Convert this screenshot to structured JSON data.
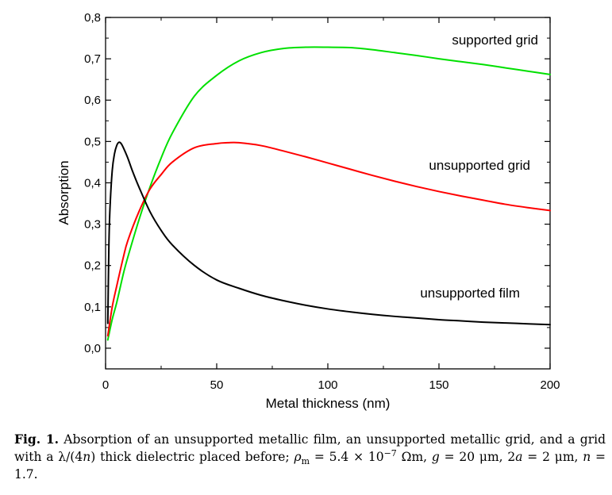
{
  "chart_data": {
    "type": "line",
    "xlabel": "Metal thickness (nm)",
    "ylabel": "Absorption",
    "xlim": [
      0,
      200
    ],
    "ylim": [
      -0.05,
      0.8
    ],
    "xticks": [
      0,
      50,
      100,
      150,
      200
    ],
    "xtick_labels": [
      "0",
      "50",
      "100",
      "150",
      "200"
    ],
    "yticks": [
      0.0,
      0.1,
      0.2,
      0.3,
      0.4,
      0.5,
      0.6,
      0.7,
      0.8
    ],
    "ytick_labels": [
      "0,0",
      "0,1",
      "0,2",
      "0,3",
      "0,4",
      "0,5",
      "0,6",
      "0,7",
      "0,8"
    ],
    "grid": false,
    "series": [
      {
        "name": "supported grid",
        "color": "#00e000",
        "x": [
          1,
          3,
          5,
          8,
          10,
          15,
          20,
          25,
          30,
          40,
          50,
          60,
          70,
          80,
          90,
          100,
          110,
          120,
          130,
          140,
          150,
          160,
          170,
          180,
          190,
          200
        ],
        "y": [
          0.02,
          0.07,
          0.11,
          0.18,
          0.22,
          0.31,
          0.39,
          0.46,
          0.52,
          0.61,
          0.66,
          0.695,
          0.715,
          0.725,
          0.728,
          0.728,
          0.727,
          0.722,
          0.715,
          0.708,
          0.7,
          0.693,
          0.686,
          0.678,
          0.67,
          0.662
        ]
      },
      {
        "name": "unsupported grid",
        "color": "#ff0000",
        "x": [
          1,
          3,
          5,
          8,
          10,
          15,
          20,
          25,
          30,
          40,
          50,
          55,
          60,
          70,
          80,
          90,
          100,
          110,
          120,
          130,
          140,
          150,
          160,
          170,
          180,
          190,
          200
        ],
        "y": [
          0.03,
          0.1,
          0.15,
          0.22,
          0.26,
          0.33,
          0.385,
          0.42,
          0.45,
          0.485,
          0.495,
          0.497,
          0.497,
          0.49,
          0.477,
          0.463,
          0.448,
          0.433,
          0.418,
          0.404,
          0.391,
          0.379,
          0.368,
          0.358,
          0.348,
          0.34,
          0.333
        ]
      },
      {
        "name": "unsupported film",
        "color": "#000000",
        "x": [
          1,
          1.5,
          2,
          3,
          4,
          5,
          6,
          7,
          8,
          10,
          12,
          15,
          20,
          25,
          30,
          40,
          50,
          60,
          70,
          80,
          90,
          100,
          110,
          120,
          130,
          140,
          150,
          160,
          170,
          180,
          190,
          200
        ],
        "y": [
          0.06,
          0.25,
          0.34,
          0.43,
          0.47,
          0.49,
          0.498,
          0.495,
          0.485,
          0.46,
          0.43,
          0.39,
          0.33,
          0.285,
          0.25,
          0.2,
          0.165,
          0.145,
          0.128,
          0.115,
          0.104,
          0.095,
          0.088,
          0.082,
          0.077,
          0.073,
          0.069,
          0.066,
          0.063,
          0.061,
          0.059,
          0.057
        ]
      }
    ],
    "annotations": [
      "supported grid",
      "unsupported grid",
      "unsupported film"
    ]
  },
  "caption": {
    "fig_label": "Fig. 1.",
    "text_before_lambda": " Absorption of an unsupported metallic film, an unsupported metallic grid, and a grid with a ",
    "lambda_expr": "λ/(4",
    "n_symbol": "n",
    "lambda_close": ")",
    "text_after_lambda": " thick dielectric placed before; ",
    "rho_symbol": "ρ",
    "rho_sub": "m",
    "rho_value": " = 5.4 × 10",
    "rho_exp": "−7",
    "rho_unit": " Ωm, ",
    "g_symbol": "g",
    "g_value": " = 20 μm, 2",
    "a_symbol": "a",
    "a_value": " = 2 μm, ",
    "n_symbol2": "n",
    "n_value": " = 1.7."
  }
}
